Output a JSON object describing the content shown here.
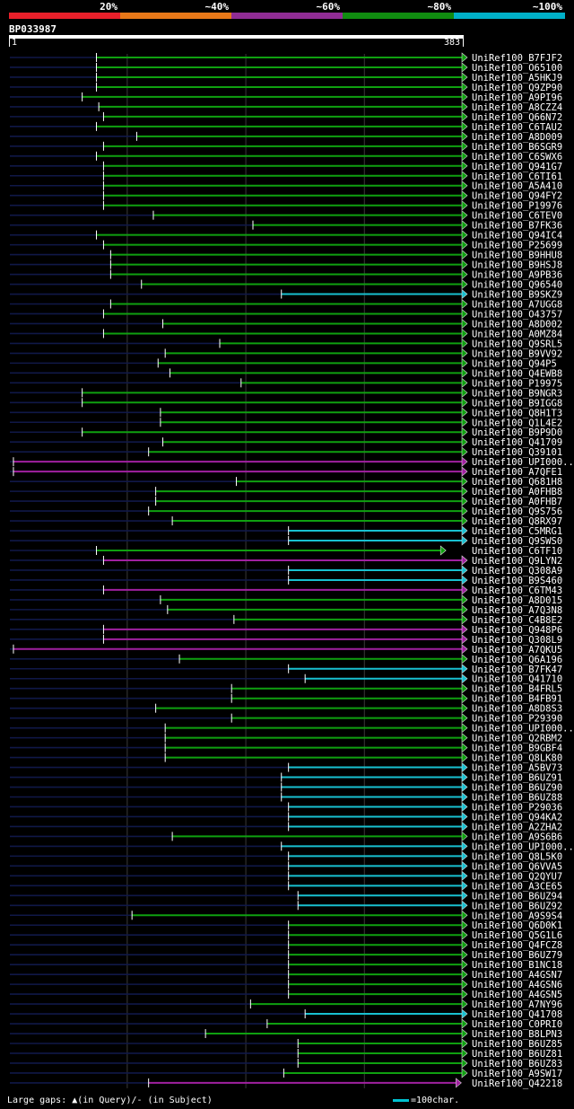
{
  "query_id": "BP033987",
  "scale": {
    "start": "1",
    "end": "383",
    "length": 383
  },
  "legend": {
    "labels": [
      "20%",
      "~40%",
      "~60%",
      "~80%",
      "~100%"
    ],
    "colors": [
      "#e8202a",
      "#e87818",
      "#902c94",
      "#108c10",
      "#00b0c8"
    ]
  },
  "colors": {
    "green": "#0fa010",
    "purple": "#a020a0",
    "cyan": "#18c0d0",
    "navy": "#101848",
    "tri": "#ffff60",
    "grid": "#3a3a3a"
  },
  "footer": {
    "text": "Large gaps: ▲(in Query)/- (in Subject)",
    "scale_text": "=100char."
  },
  "hits": [
    {
      "name": "UniRef100_B7FJF2",
      "start": 74,
      "end": 383,
      "color": "green",
      "arrow": true
    },
    {
      "name": "UniRef100_O65100",
      "start": 74,
      "end": 383,
      "color": "green",
      "arrow": true
    },
    {
      "name": "UniRef100_A5HKJ9",
      "start": 74,
      "end": 383,
      "color": "green",
      "arrow": true
    },
    {
      "name": "UniRef100_Q9ZP90",
      "start": 74,
      "end": 383,
      "color": "green",
      "arrow": true
    },
    {
      "name": "UniRef100_A9PI96",
      "start": 62,
      "end": 383,
      "color": "green",
      "arrow": true
    },
    {
      "name": "UniRef100_A8CZZ4",
      "start": 76,
      "end": 383,
      "color": "green",
      "arrow": true
    },
    {
      "name": "UniRef100_Q66N72",
      "start": 80,
      "end": 383,
      "color": "green",
      "arrow": true
    },
    {
      "name": "UniRef100_C6TAU2",
      "start": 74,
      "end": 383,
      "color": "green",
      "arrow": true
    },
    {
      "name": "UniRef100_A8D009",
      "start": 108,
      "end": 383,
      "color": "green",
      "arrow": true
    },
    {
      "name": "UniRef100_B6SGR9",
      "start": 80,
      "end": 383,
      "color": "green",
      "arrow": true
    },
    {
      "name": "UniRef100_C6SWX6",
      "start": 74,
      "end": 383,
      "color": "green",
      "arrow": true
    },
    {
      "name": "UniRef100_Q941G7",
      "start": 80,
      "end": 383,
      "color": "green",
      "arrow": true
    },
    {
      "name": "UniRef100_C6TI61",
      "start": 80,
      "end": 383,
      "color": "green",
      "arrow": true
    },
    {
      "name": "UniRef100_A5A410",
      "start": 80,
      "end": 383,
      "color": "green",
      "arrow": true
    },
    {
      "name": "UniRef100_Q94FY2",
      "start": 80,
      "end": 383,
      "color": "green",
      "arrow": true
    },
    {
      "name": "UniRef100_P19976",
      "start": 80,
      "end": 383,
      "color": "green",
      "arrow": true
    },
    {
      "name": "UniRef100_C6TEV0",
      "start": 122,
      "end": 383,
      "color": "green",
      "arrow": true
    },
    {
      "name": "UniRef100_B7FK36",
      "start": 206,
      "end": 383,
      "color": "green",
      "arrow": true
    },
    {
      "name": "UniRef100_Q94IC4",
      "start": 74,
      "end": 383,
      "color": "green",
      "arrow": true
    },
    {
      "name": "UniRef100_P25699",
      "start": 80,
      "end": 383,
      "color": "green",
      "arrow": true
    },
    {
      "name": "UniRef100_B9HHU8",
      "start": 86,
      "end": 383,
      "color": "green",
      "arrow": true
    },
    {
      "name": "UniRef100_B9HSJ8",
      "start": 86,
      "end": 383,
      "color": "green",
      "arrow": true
    },
    {
      "name": "UniRef100_A9PB36",
      "start": 86,
      "end": 383,
      "color": "green",
      "arrow": true
    },
    {
      "name": "UniRef100_Q96540",
      "start": 112,
      "end": 383,
      "color": "green",
      "arrow": true
    },
    {
      "name": "UniRef100_B9SKZ9",
      "start": 230,
      "end": 383,
      "color": "cyan",
      "arrow": true
    },
    {
      "name": "UniRef100_A7UGG8",
      "start": 86,
      "end": 383,
      "color": "green",
      "arrow": true
    },
    {
      "name": "UniRef100_O43757",
      "start": 80,
      "end": 383,
      "color": "green",
      "arrow": true
    },
    {
      "name": "UniRef100_A8D002",
      "start": 130,
      "end": 383,
      "color": "green",
      "arrow": true
    },
    {
      "name": "UniRef100_A0MZ84",
      "start": 80,
      "end": 383,
      "color": "green",
      "arrow": true
    },
    {
      "name": "UniRef100_Q9SRL5",
      "start": 178,
      "end": 383,
      "color": "green",
      "arrow": true
    },
    {
      "name": "UniRef100_B9VV92",
      "start": 132,
      "end": 383,
      "color": "green",
      "arrow": true
    },
    {
      "name": "UniRef100_Q94P5",
      "start": 126,
      "end": 383,
      "color": "green",
      "arrow": true
    },
    {
      "name": "UniRef100_Q4EWB8",
      "start": 136,
      "end": 383,
      "color": "green",
      "arrow": true
    },
    {
      "name": "UniRef100_P19975",
      "start": 196,
      "end": 383,
      "color": "green",
      "arrow": true
    },
    {
      "name": "UniRef100_B9NGR3",
      "start": 62,
      "end": 383,
      "color": "green",
      "arrow": true
    },
    {
      "name": "UniRef100_B9IGG8",
      "start": 62,
      "end": 383,
      "color": "green",
      "arrow": true
    },
    {
      "name": "UniRef100_Q8H1T3",
      "start": 128,
      "end": 383,
      "color": "green",
      "arrow": true
    },
    {
      "name": "UniRef100_Q1L4E2",
      "start": 128,
      "end": 383,
      "color": "green",
      "arrow": true
    },
    {
      "name": "UniRef100_B9P9D0",
      "start": 62,
      "end": 383,
      "color": "green",
      "arrow": true
    },
    {
      "name": "UniRef100_Q41709",
      "start": 130,
      "end": 383,
      "color": "green",
      "arrow": true
    },
    {
      "name": "UniRef100_Q39101",
      "start": 118,
      "end": 383,
      "color": "green",
      "arrow": true
    },
    {
      "name": "UniRef100_UPI000..",
      "start": 4,
      "end": 383,
      "color": "purple",
      "arrow": true
    },
    {
      "name": "UniRef100_A7QFE1",
      "start": 4,
      "end": 383,
      "color": "purple",
      "arrow": true
    },
    {
      "name": "UniRef100_Q681H8",
      "start": 192,
      "end": 383,
      "color": "green",
      "arrow": true
    },
    {
      "name": "UniRef100_A0FHB8",
      "start": 124,
      "end": 383,
      "color": "green",
      "arrow": true
    },
    {
      "name": "UniRef100_A0FHB7",
      "start": 124,
      "end": 383,
      "color": "green",
      "arrow": true
    },
    {
      "name": "UniRef100_Q9S756",
      "start": 118,
      "end": 383,
      "color": "green",
      "arrow": true
    },
    {
      "name": "UniRef100_Q8RX97",
      "start": 138,
      "end": 383,
      "color": "green",
      "arrow": true
    },
    {
      "name": "UniRef100_C5MRG1",
      "start": 236,
      "end": 383,
      "color": "cyan",
      "arrow": true
    },
    {
      "name": "UniRef100_Q9SWS0",
      "start": 236,
      "end": 383,
      "color": "cyan",
      "arrow": true
    },
    {
      "name": "UniRef100_C6TF10",
      "start": 74,
      "end": 365,
      "color": "green",
      "arrow": true
    },
    {
      "name": "UniRef100_Q9LYN2",
      "start": 80,
      "end": 383,
      "color": "purple",
      "arrow": true
    },
    {
      "name": "UniRef100_Q308A9",
      "start": 236,
      "end": 383,
      "color": "cyan",
      "arrow": true
    },
    {
      "name": "UniRef100_B9S460",
      "start": 236,
      "end": 383,
      "color": "cyan",
      "arrow": true
    },
    {
      "name": "UniRef100_C6TM43",
      "start": 80,
      "end": 383,
      "color": "purple",
      "arrow": true
    },
    {
      "name": "UniRef100_A8D015",
      "start": 128,
      "end": 383,
      "color": "green",
      "arrow": true
    },
    {
      "name": "UniRef100_A7Q3N8",
      "start": 134,
      "end": 383,
      "color": "green",
      "arrow": true
    },
    {
      "name": "UniRef100_C4B8E2",
      "start": 190,
      "end": 383,
      "color": "green",
      "arrow": true
    },
    {
      "name": "UniRef100_Q948P6",
      "start": 80,
      "end": 383,
      "color": "purple",
      "arrow": true
    },
    {
      "name": "UniRef100_Q308L9",
      "start": 80,
      "end": 383,
      "color": "purple",
      "arrow": true
    },
    {
      "name": "UniRef100_A7QKU5",
      "start": 4,
      "end": 383,
      "color": "purple",
      "arrow": true
    },
    {
      "name": "UniRef100_Q6A196",
      "start": 144,
      "end": 383,
      "color": "green",
      "arrow": true
    },
    {
      "name": "UniRef100_B7FK47",
      "start": 236,
      "end": 383,
      "color": "cyan",
      "arrow": true
    },
    {
      "name": "UniRef100_Q41710",
      "start": 250,
      "end": 383,
      "color": "cyan",
      "arrow": true
    },
    {
      "name": "UniRef100_B4FRL5",
      "start": 188,
      "end": 383,
      "color": "green",
      "arrow": true
    },
    {
      "name": "UniRef100_B4FB91",
      "start": 188,
      "end": 383,
      "color": "green",
      "arrow": true
    },
    {
      "name": "UniRef100_A8D8S3",
      "start": 124,
      "end": 383,
      "color": "green",
      "arrow": true
    },
    {
      "name": "UniRef100_P29390",
      "start": 188,
      "end": 383,
      "color": "green",
      "arrow": true
    },
    {
      "name": "UniRef100_UPI000..",
      "start": 132,
      "end": 383,
      "color": "green",
      "arrow": true
    },
    {
      "name": "UniRef100_Q2RBM2",
      "start": 132,
      "end": 383,
      "color": "green",
      "arrow": true
    },
    {
      "name": "UniRef100_B9GBF4",
      "start": 132,
      "end": 383,
      "color": "green",
      "arrow": true
    },
    {
      "name": "UniRef100_Q8LK80",
      "start": 132,
      "end": 383,
      "color": "green",
      "arrow": true
    },
    {
      "name": "UniRef100_A5BV73",
      "start": 236,
      "end": 383,
      "color": "cyan",
      "arrow": true
    },
    {
      "name": "UniRef100_B6UZ91",
      "start": 230,
      "end": 383,
      "color": "cyan",
      "arrow": true
    },
    {
      "name": "UniRef100_B6UZ90",
      "start": 230,
      "end": 383,
      "color": "cyan",
      "arrow": true
    },
    {
      "name": "UniRef100_B6UZ88",
      "start": 230,
      "end": 383,
      "color": "cyan",
      "arrow": true
    },
    {
      "name": "UniRef100_P29036",
      "start": 236,
      "end": 383,
      "color": "cyan",
      "arrow": true
    },
    {
      "name": "UniRef100_Q94KA2",
      "start": 236,
      "end": 383,
      "color": "cyan",
      "arrow": true
    },
    {
      "name": "UniRef100_A2ZHA2",
      "start": 236,
      "end": 383,
      "color": "cyan",
      "arrow": true
    },
    {
      "name": "UniRef100_A9S6B6",
      "start": 138,
      "end": 383,
      "color": "green",
      "arrow": true
    },
    {
      "name": "UniRef100_UPI000..",
      "start": 230,
      "end": 383,
      "color": "cyan",
      "arrow": true
    },
    {
      "name": "UniRef100_Q8L5K0",
      "start": 236,
      "end": 383,
      "color": "cyan",
      "arrow": true
    },
    {
      "name": "UniRef100_Q6VVA5",
      "start": 236,
      "end": 383,
      "color": "cyan",
      "arrow": true
    },
    {
      "name": "UniRef100_Q2QYU7",
      "start": 236,
      "end": 383,
      "color": "cyan",
      "arrow": true
    },
    {
      "name": "UniRef100_A3CE65",
      "start": 236,
      "end": 383,
      "color": "cyan",
      "arrow": true
    },
    {
      "name": "UniRef100_B6UZ94",
      "start": 244,
      "end": 383,
      "color": "cyan",
      "arrow": true
    },
    {
      "name": "UniRef100_B6UZ92",
      "start": 244,
      "end": 383,
      "color": "cyan",
      "arrow": true
    },
    {
      "name": "UniRef100_A9S9S4",
      "start": 104,
      "end": 383,
      "color": "green",
      "arrow": true
    },
    {
      "name": "UniRef100_Q6D0K1",
      "start": 236,
      "end": 383,
      "color": "green",
      "arrow": true
    },
    {
      "name": "UniRef100_Q5G1L6",
      "start": 236,
      "end": 383,
      "color": "green",
      "arrow": true
    },
    {
      "name": "UniRef100_Q4FCZ8",
      "start": 236,
      "end": 383,
      "color": "green",
      "arrow": true
    },
    {
      "name": "UniRef100_B6UZ79",
      "start": 236,
      "end": 383,
      "color": "green",
      "arrow": true
    },
    {
      "name": "UniRef100_B1NC18",
      "start": 236,
      "end": 383,
      "color": "green",
      "arrow": true
    },
    {
      "name": "UniRef100_A4GSN7",
      "start": 236,
      "end": 383,
      "color": "green",
      "arrow": true
    },
    {
      "name": "UniRef100_A4GSN6",
      "start": 236,
      "end": 383,
      "color": "green",
      "arrow": true
    },
    {
      "name": "UniRef100_A4GSN5",
      "start": 236,
      "end": 383,
      "color": "green",
      "arrow": true
    },
    {
      "name": "UniRef100_A7NY96",
      "start": 204,
      "end": 383,
      "color": "green",
      "arrow": true
    },
    {
      "name": "UniRef100_Q41708",
      "start": 250,
      "end": 383,
      "color": "cyan",
      "arrow": true
    },
    {
      "name": "UniRef100_C0PRI0",
      "start": 218,
      "end": 383,
      "color": "green",
      "arrow": true
    },
    {
      "name": "UniRef100_B8LPN3",
      "start": 166,
      "end": 383,
      "color": "green",
      "arrow": true
    },
    {
      "name": "UniRef100_B6UZ85",
      "start": 244,
      "end": 383,
      "color": "green",
      "arrow": true
    },
    {
      "name": "UniRef100_B6UZ81",
      "start": 244,
      "end": 383,
      "color": "green",
      "arrow": true
    },
    {
      "name": "UniRef100_B6UZ83",
      "start": 244,
      "end": 383,
      "color": "green",
      "arrow": true
    },
    {
      "name": "UniRef100_A9SW17",
      "start": 232,
      "end": 383,
      "color": "green",
      "arrow": true
    },
    {
      "name": "UniRef100_Q42218",
      "start": 118,
      "end": 378,
      "color": "purple",
      "arrow": true
    }
  ]
}
